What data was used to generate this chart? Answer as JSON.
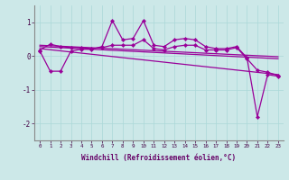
{
  "xlabel": "Windchill (Refroidissement éolien,°C)",
  "background_color": "#cce8e8",
  "line_color": "#990099",
  "grid_color": "#aad8d8",
  "xlim": [
    -0.5,
    23.5
  ],
  "ylim": [
    -2.5,
    1.5
  ],
  "yticks": [
    -2,
    -1,
    0,
    1
  ],
  "xticks": [
    0,
    1,
    2,
    3,
    4,
    5,
    6,
    7,
    8,
    9,
    10,
    11,
    12,
    13,
    14,
    15,
    16,
    17,
    18,
    19,
    20,
    21,
    22,
    23
  ],
  "line1_x": [
    0,
    1,
    2,
    3,
    4,
    5,
    6,
    7,
    8,
    9,
    10,
    11,
    12,
    13,
    14,
    15,
    16,
    17,
    18,
    19,
    20,
    21,
    22,
    23
  ],
  "line1_y": [
    0.15,
    -0.45,
    -0.45,
    0.15,
    0.2,
    0.2,
    0.28,
    1.05,
    0.48,
    0.52,
    1.05,
    0.32,
    0.28,
    0.48,
    0.52,
    0.48,
    0.28,
    0.22,
    0.22,
    0.28,
    -0.05,
    -1.8,
    -0.55,
    -0.6
  ],
  "line2_x": [
    0,
    1,
    2,
    3,
    4,
    5,
    6,
    7,
    8,
    9,
    10,
    11,
    12,
    13,
    14,
    15,
    16,
    17,
    18,
    19,
    20,
    21,
    22,
    23
  ],
  "line2_y": [
    0.18,
    0.35,
    0.28,
    0.25,
    0.25,
    0.22,
    0.25,
    0.32,
    0.32,
    0.32,
    0.48,
    0.22,
    0.18,
    0.28,
    0.32,
    0.32,
    0.18,
    0.18,
    0.18,
    0.25,
    -0.08,
    -0.42,
    -0.48,
    -0.58
  ],
  "diag_lines": [
    [
      0.32,
      -0.02
    ],
    [
      0.28,
      -0.08
    ],
    [
      0.22,
      -0.55
    ]
  ]
}
